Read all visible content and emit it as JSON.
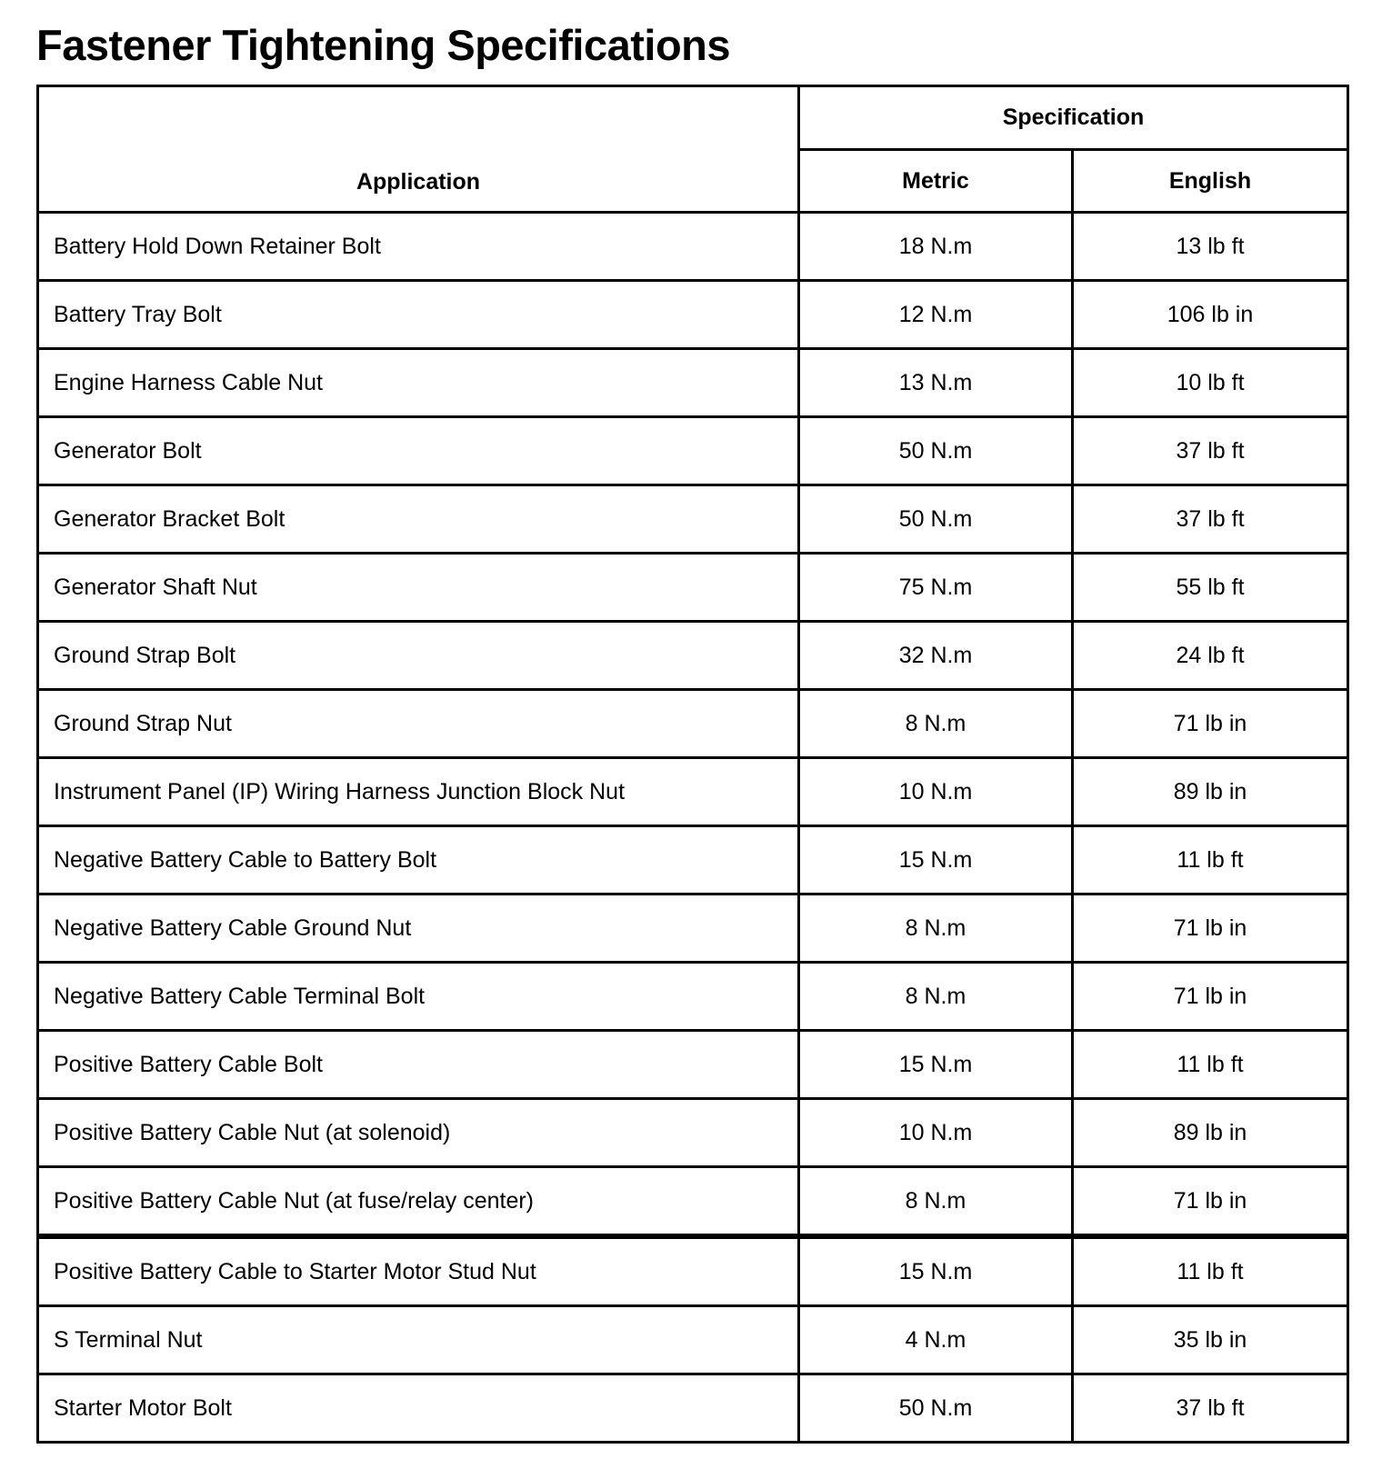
{
  "title": "Fastener Tightening Specifications",
  "headers": {
    "application": "Application",
    "specification": "Specification",
    "metric": "Metric",
    "english": "English"
  },
  "rows": [
    {
      "application": "Battery Hold Down Retainer Bolt",
      "metric": "18 N.m",
      "english": "13 lb ft"
    },
    {
      "application": "Battery Tray Bolt",
      "metric": "12 N.m",
      "english": "106 lb in"
    },
    {
      "application": "Engine Harness Cable Nut",
      "metric": "13 N.m",
      "english": "10 lb ft"
    },
    {
      "application": "Generator Bolt",
      "metric": "50 N.m",
      "english": "37 lb ft"
    },
    {
      "application": "Generator Bracket Bolt",
      "metric": "50 N.m",
      "english": "37 lb ft"
    },
    {
      "application": "Generator Shaft Nut",
      "metric": "75 N.m",
      "english": "55 lb ft"
    },
    {
      "application": "Ground Strap Bolt",
      "metric": "32 N.m",
      "english": "24 lb ft"
    },
    {
      "application": "Ground Strap Nut",
      "metric": "8 N.m",
      "english": "71 lb in"
    },
    {
      "application": "Instrument Panel (IP) Wiring Harness Junction Block Nut",
      "metric": "10 N.m",
      "english": "89 lb in"
    },
    {
      "application": "Negative Battery Cable to Battery Bolt",
      "metric": "15 N.m",
      "english": "11 lb ft"
    },
    {
      "application": "Negative Battery Cable Ground Nut",
      "metric": "8 N.m",
      "english": "71 lb in"
    },
    {
      "application": "Negative Battery Cable Terminal Bolt",
      "metric": "8 N.m",
      "english": "71 lb in"
    },
    {
      "application": "Positive Battery Cable Bolt",
      "metric": "15 N.m",
      "english": "11 lb ft"
    },
    {
      "application": "Positive Battery Cable Nut (at solenoid)",
      "metric": "10 N.m",
      "english": "89 lb in"
    },
    {
      "application": "Positive Battery Cable Nut (at fuse/relay center)",
      "metric": "8 N.m",
      "english": "71 lb in"
    },
    {
      "application": "Positive Battery Cable to Starter Motor Stud Nut",
      "metric": "15 N.m",
      "english": "11 lb ft"
    },
    {
      "application": "S Terminal Nut",
      "metric": "4 N.m",
      "english": "35 lb in"
    },
    {
      "application": "Starter Motor Bolt",
      "metric": "50 N.m",
      "english": "37 lb ft"
    }
  ]
}
